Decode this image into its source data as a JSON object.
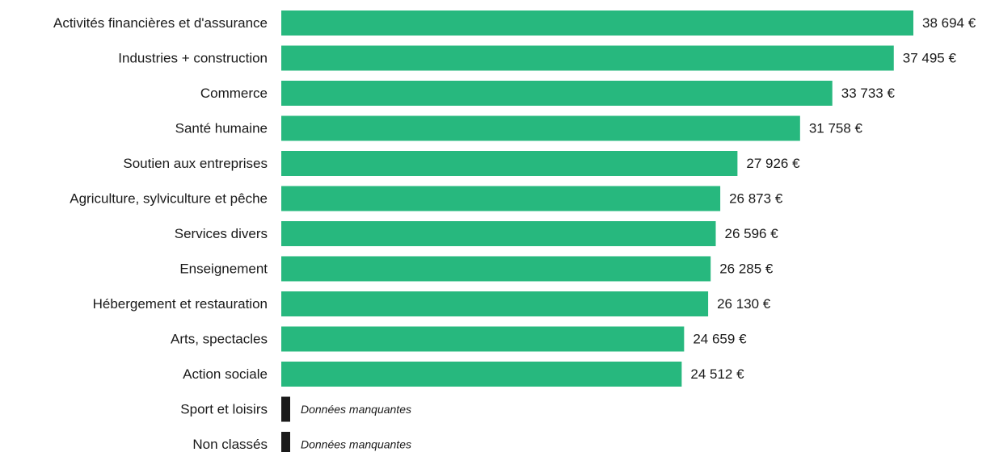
{
  "chart_data": {
    "type": "bar",
    "orientation": "horizontal",
    "title": "",
    "xlabel": "",
    "ylabel": "",
    "unit": "€",
    "grid": false,
    "xlim": [
      0,
      38694
    ],
    "colors": {
      "bar": "#27b87e",
      "missing": "#1a1a1a"
    },
    "missing_text": "Données manquantes",
    "categories": [
      "Activités financières et d'assurance",
      "Industries + construction",
      "Commerce",
      "Santé humaine",
      "Soutien aux entreprises",
      "Agriculture, sylviculture et pêche",
      "Services divers",
      "Enseignement",
      "Hébergement et restauration",
      "Arts, spectacles",
      "Action sociale",
      "Sport et loisirs",
      "Non classés"
    ],
    "values": [
      38694,
      37495,
      33733,
      31758,
      27926,
      26873,
      26596,
      26285,
      26130,
      24659,
      24512,
      null,
      null
    ],
    "value_labels": [
      "38 694 €",
      "37 495 €",
      "33 733 €",
      "31 758 €",
      "27 926 €",
      "26 873 €",
      "26 596 €",
      "26 285 €",
      "26 130 €",
      "24 659 €",
      "24 512 €",
      "",
      ""
    ]
  }
}
